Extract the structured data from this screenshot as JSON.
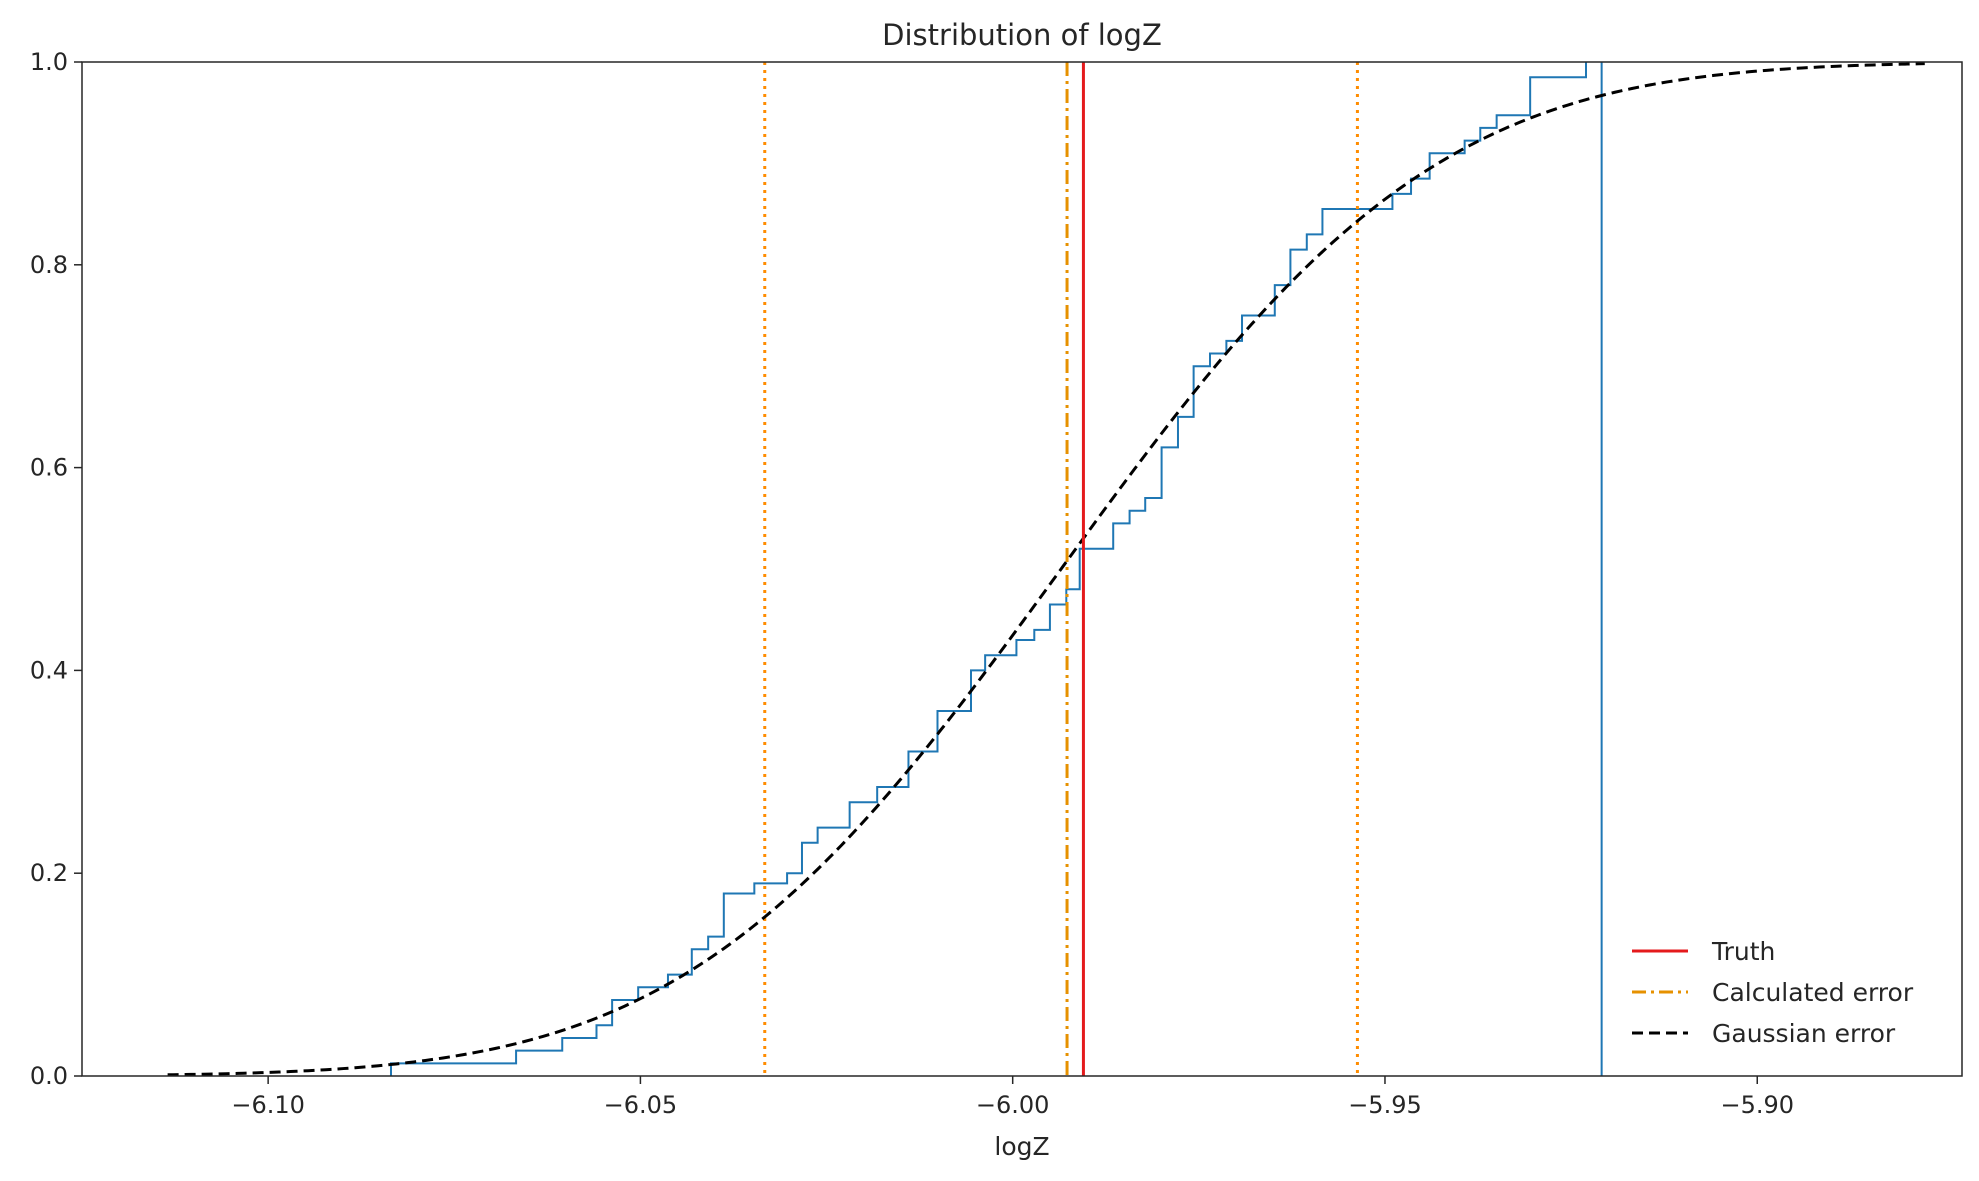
{
  "chart_data": {
    "type": "line",
    "title": "Distribution of logZ",
    "xlabel": "logZ",
    "ylabel": "",
    "xlim": [
      -6.125,
      -5.8725
    ],
    "ylim": [
      0,
      1.0
    ],
    "xticks": [
      -6.1,
      -6.05,
      -6.0,
      -5.95,
      -5.9
    ],
    "xtick_labels": [
      "−6.10",
      "−6.05",
      "−6.00",
      "−5.95",
      "−5.90"
    ],
    "yticks": [
      0.0,
      0.2,
      0.4,
      0.6,
      0.8,
      1.0
    ],
    "ytick_labels": [
      "0.0",
      "0.2",
      "0.4",
      "0.6",
      "0.8",
      "1.0"
    ],
    "grid": false,
    "legend_position": "lower-right",
    "colors": {
      "ecdf": "#1f77b4",
      "truth": "#e41a1c",
      "calculated": "#ff8c00",
      "gaussian": "#000000"
    },
    "legend": [
      {
        "label": "Truth",
        "style": "solid",
        "color": "#e41a1c"
      },
      {
        "label": "Calculated error",
        "style": "dashdot",
        "color": "#e69100"
      },
      {
        "label": "Gaussian error",
        "style": "dashed",
        "color": "#000000"
      }
    ],
    "series": [
      {
        "name": "Truth",
        "kind": "vline",
        "x": -5.9905
      },
      {
        "name": "Calculated error",
        "kind": "vline",
        "x": -5.9927,
        "error_bounds": [
          -6.0333,
          -5.9537
        ]
      },
      {
        "name": "Gaussian error",
        "kind": "curve",
        "mean": -5.9935,
        "sigma": 0.0395,
        "x_range": [
          -6.1135,
          -5.8775
        ]
      },
      {
        "kind": "ecdf_step",
        "end_x": -5.9209,
        "points": [
          [
            -6.0835,
            0.0
          ],
          [
            -6.0835,
            0.0125
          ],
          [
            -6.0667,
            0.0125
          ],
          [
            -6.0667,
            0.025
          ],
          [
            -6.0605,
            0.025
          ],
          [
            -6.0605,
            0.0375
          ],
          [
            -6.0559,
            0.0375
          ],
          [
            -6.0559,
            0.05
          ],
          [
            -6.0538,
            0.05
          ],
          [
            -6.0538,
            0.075
          ],
          [
            -6.0503,
            0.075
          ],
          [
            -6.0503,
            0.0875
          ],
          [
            -6.0463,
            0.0875
          ],
          [
            -6.0463,
            0.1
          ],
          [
            -6.0431,
            0.1
          ],
          [
            -6.0431,
            0.125
          ],
          [
            -6.0409,
            0.125
          ],
          [
            -6.0409,
            0.1375
          ],
          [
            -6.0388,
            0.1375
          ],
          [
            -6.0388,
            0.18
          ],
          [
            -6.0347,
            0.18
          ],
          [
            -6.0347,
            0.19
          ],
          [
            -6.0303,
            0.19
          ],
          [
            -6.0303,
            0.2
          ],
          [
            -6.0283,
            0.2
          ],
          [
            -6.0283,
            0.23
          ],
          [
            -6.0262,
            0.23
          ],
          [
            -6.0262,
            0.245
          ],
          [
            -6.0219,
            0.245
          ],
          [
            -6.0219,
            0.27
          ],
          [
            -6.0182,
            0.27
          ],
          [
            -6.0182,
            0.285
          ],
          [
            -6.014,
            0.285
          ],
          [
            -6.014,
            0.32
          ],
          [
            -6.0101,
            0.32
          ],
          [
            -6.0101,
            0.36
          ],
          [
            -6.0056,
            0.36
          ],
          [
            -6.0056,
            0.4
          ],
          [
            -6.0037,
            0.4
          ],
          [
            -6.0037,
            0.415
          ],
          [
            -5.9995,
            0.415
          ],
          [
            -5.9995,
            0.43
          ],
          [
            -5.9971,
            0.43
          ],
          [
            -5.9971,
            0.44
          ],
          [
            -5.995,
            0.44
          ],
          [
            -5.995,
            0.465
          ],
          [
            -5.9928,
            0.465
          ],
          [
            -5.9928,
            0.48
          ],
          [
            -5.991,
            0.48
          ],
          [
            -5.991,
            0.52
          ],
          [
            -5.9865,
            0.52
          ],
          [
            -5.9865,
            0.545
          ],
          [
            -5.9843,
            0.545
          ],
          [
            -5.9843,
            0.5575
          ],
          [
            -5.9822,
            0.5575
          ],
          [
            -5.9822,
            0.57
          ],
          [
            -5.98,
            0.57
          ],
          [
            -5.98,
            0.62
          ],
          [
            -5.9778,
            0.62
          ],
          [
            -5.9778,
            0.65
          ],
          [
            -5.9757,
            0.65
          ],
          [
            -5.9757,
            0.7
          ],
          [
            -5.9735,
            0.7
          ],
          [
            -5.9735,
            0.7125
          ],
          [
            -5.9713,
            0.7125
          ],
          [
            -5.9713,
            0.725
          ],
          [
            -5.9692,
            0.725
          ],
          [
            -5.9692,
            0.75
          ],
          [
            -5.9648,
            0.75
          ],
          [
            -5.9648,
            0.78
          ],
          [
            -5.9627,
            0.78
          ],
          [
            -5.9627,
            0.815
          ],
          [
            -5.9605,
            0.815
          ],
          [
            -5.9605,
            0.83
          ],
          [
            -5.9584,
            0.83
          ],
          [
            -5.9584,
            0.855
          ],
          [
            -5.949,
            0.855
          ],
          [
            -5.949,
            0.87
          ],
          [
            -5.9465,
            0.87
          ],
          [
            -5.9465,
            0.885
          ],
          [
            -5.944,
            0.885
          ],
          [
            -5.944,
            0.91
          ],
          [
            -5.9393,
            0.91
          ],
          [
            -5.9393,
            0.9225
          ],
          [
            -5.9372,
            0.9225
          ],
          [
            -5.9372,
            0.935
          ],
          [
            -5.935,
            0.935
          ],
          [
            -5.935,
            0.9475
          ],
          [
            -5.9305,
            0.9475
          ],
          [
            -5.9305,
            0.985
          ],
          [
            -5.923,
            0.985
          ],
          [
            -5.923,
            1.0
          ]
        ]
      }
    ]
  }
}
